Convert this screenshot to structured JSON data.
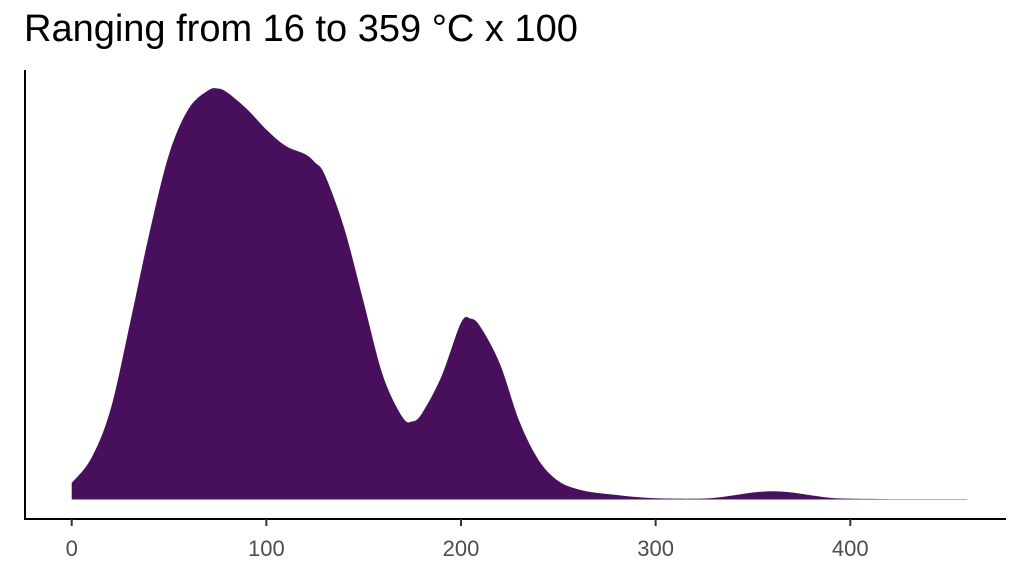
{
  "chart_data": {
    "type": "area",
    "title": "Ranging from 16 to 359 °C x 100",
    "xlabel": "",
    "ylabel": "",
    "xlim": [
      -24,
      480
    ],
    "ylim": [
      0,
      1.05
    ],
    "grid": false,
    "legend": "none",
    "fill_color": "#48105c",
    "x_ticks": [
      0,
      100,
      200,
      300,
      400
    ],
    "tick_labels": [
      "0",
      "100",
      "200",
      "300",
      "400"
    ],
    "series": [
      {
        "x": [
          0,
          10,
          20,
          30,
          40,
          50,
          60,
          70,
          75,
          80,
          90,
          100,
          110,
          120,
          125,
          130,
          140,
          150,
          160,
          170,
          175,
          180,
          190,
          200,
          205,
          210,
          220,
          230,
          240,
          250,
          260,
          270,
          280,
          290,
          300,
          310,
          320,
          330,
          340,
          350,
          360,
          370,
          380,
          390,
          400,
          420,
          440,
          460
        ],
        "y": [
          0.04,
          0.1,
          0.22,
          0.43,
          0.65,
          0.84,
          0.95,
          0.995,
          1.0,
          0.99,
          0.95,
          0.9,
          0.86,
          0.84,
          0.82,
          0.79,
          0.66,
          0.48,
          0.3,
          0.2,
          0.19,
          0.21,
          0.3,
          0.43,
          0.44,
          0.42,
          0.33,
          0.19,
          0.095,
          0.045,
          0.025,
          0.016,
          0.011,
          0.006,
          0.003,
          0.002,
          0.002,
          0.004,
          0.01,
          0.017,
          0.02,
          0.017,
          0.01,
          0.004,
          0.002,
          0.001,
          0.001,
          0.001
        ]
      }
    ]
  }
}
